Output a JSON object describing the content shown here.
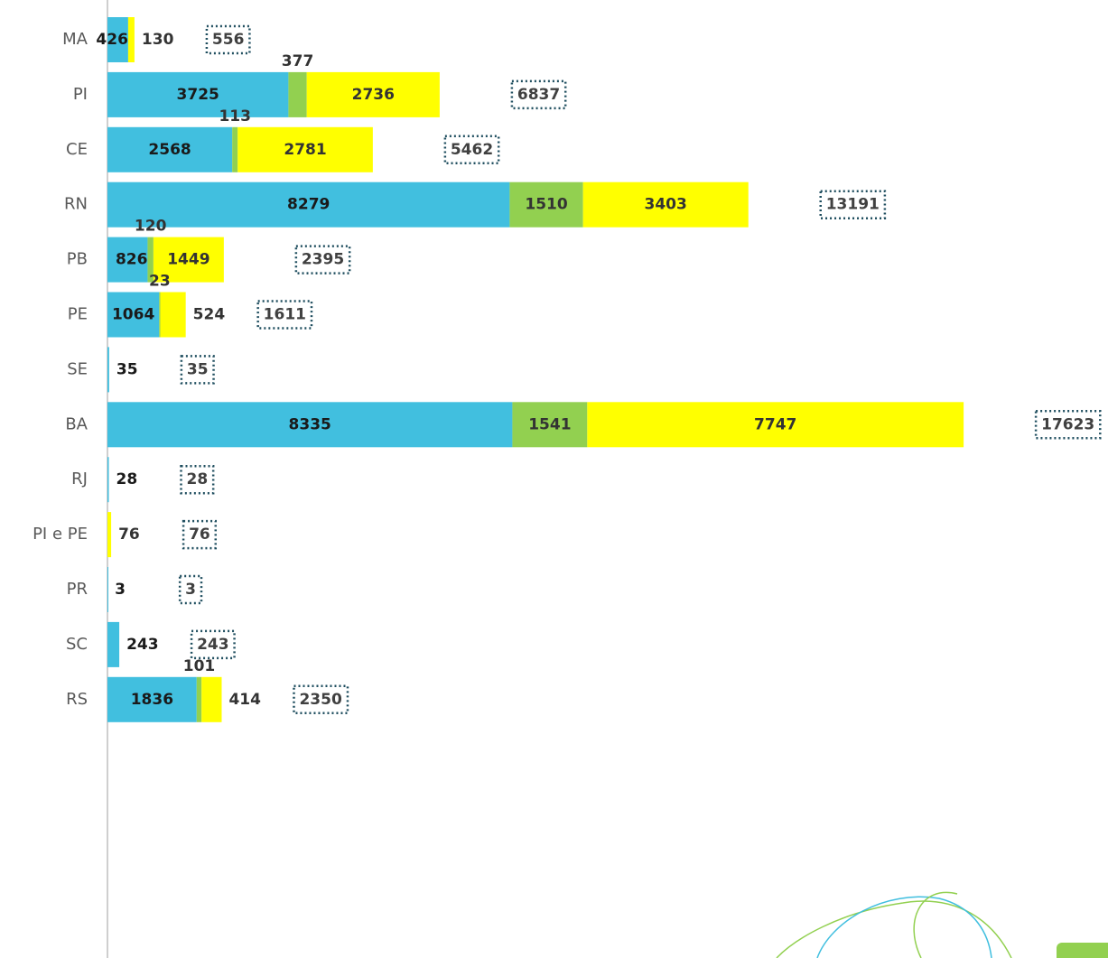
{
  "chart_data": {
    "type": "stacked-bar-horizontal",
    "categories": [
      "MA",
      "PI",
      "CE",
      "RN",
      "PB",
      "PE",
      "SE",
      "BA",
      "RJ",
      "PI e PE",
      "PR",
      "SC",
      "RS"
    ],
    "series": [
      {
        "color": "#41bfdf",
        "values": [
          426,
          3725,
          2568,
          8279,
          826,
          1064,
          35,
          8335,
          28,
          null,
          3,
          243,
          1836
        ]
      },
      {
        "color": "#92d050",
        "values": [
          null,
          377,
          113,
          1510,
          120,
          23,
          null,
          1541,
          null,
          null,
          null,
          null,
          101
        ]
      },
      {
        "color": "#ffff00",
        "values": [
          130,
          2736,
          2781,
          3403,
          1449,
          524,
          null,
          7747,
          null,
          76,
          null,
          null,
          414
        ]
      }
    ],
    "totals": [
      556,
      6837,
      5462,
      13191,
      2395,
      1611,
      35,
      17623,
      28,
      76,
      3,
      243,
      2350
    ],
    "xlim": [
      0,
      20000
    ]
  }
}
